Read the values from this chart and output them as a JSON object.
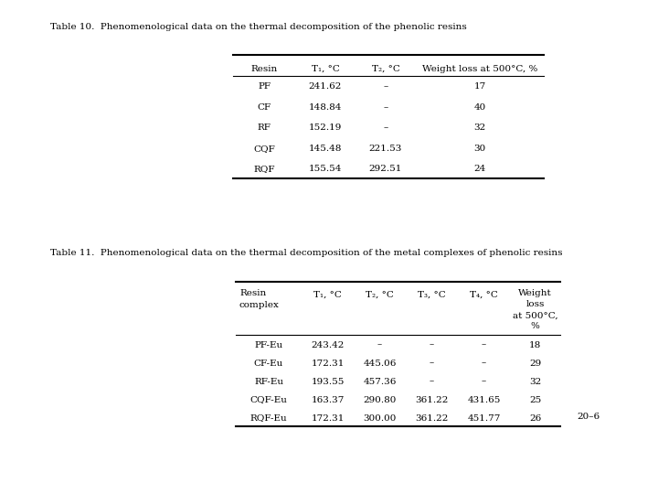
{
  "title1": "Table 10.  Phenomenological data on the thermal decomposition of the phenolic resins",
  "title2": "Table 11.  Phenomenological data on the thermal decomposition of the metal complexes of phenolic resins",
  "table1_headers": [
    "Resin",
    "T₁, °C",
    "T₂, °C",
    "Weight loss at 500°C, %"
  ],
  "table1_data": [
    [
      "PF",
      "241.62",
      "–",
      "17"
    ],
    [
      "CF",
      "148.84",
      "–",
      "40"
    ],
    [
      "RF",
      "152.19",
      "–",
      "32"
    ],
    [
      "CQF",
      "145.48",
      "221.53",
      "30"
    ],
    [
      "RQF",
      "155.54",
      "292.51",
      "24"
    ]
  ],
  "table2_headers": [
    "Resin\ncomplex",
    "T₁, °C",
    "T₂, °C",
    "T₃, °C",
    "T₄, °C",
    "Weight\nloss\nat 500°C,\n%"
  ],
  "table2_data": [
    [
      "PF-Eu",
      "243.42",
      "–",
      "–",
      "–",
      "18"
    ],
    [
      "CF-Eu",
      "172.31",
      "445.06",
      "–",
      "–",
      "29"
    ],
    [
      "RF-Eu",
      "193.55",
      "457.36",
      "–",
      "–",
      "32"
    ],
    [
      "CQF-Eu",
      "163.37",
      "290.80",
      "361.22",
      "431.65",
      "25"
    ],
    [
      "RQF-Eu",
      "172.31",
      "300.00",
      "361.22",
      "451.77",
      "26"
    ]
  ],
  "page_label": "20–6",
  "bg_color": "#ffffff",
  "font_size": 7.5,
  "title_font_size": 7.5
}
